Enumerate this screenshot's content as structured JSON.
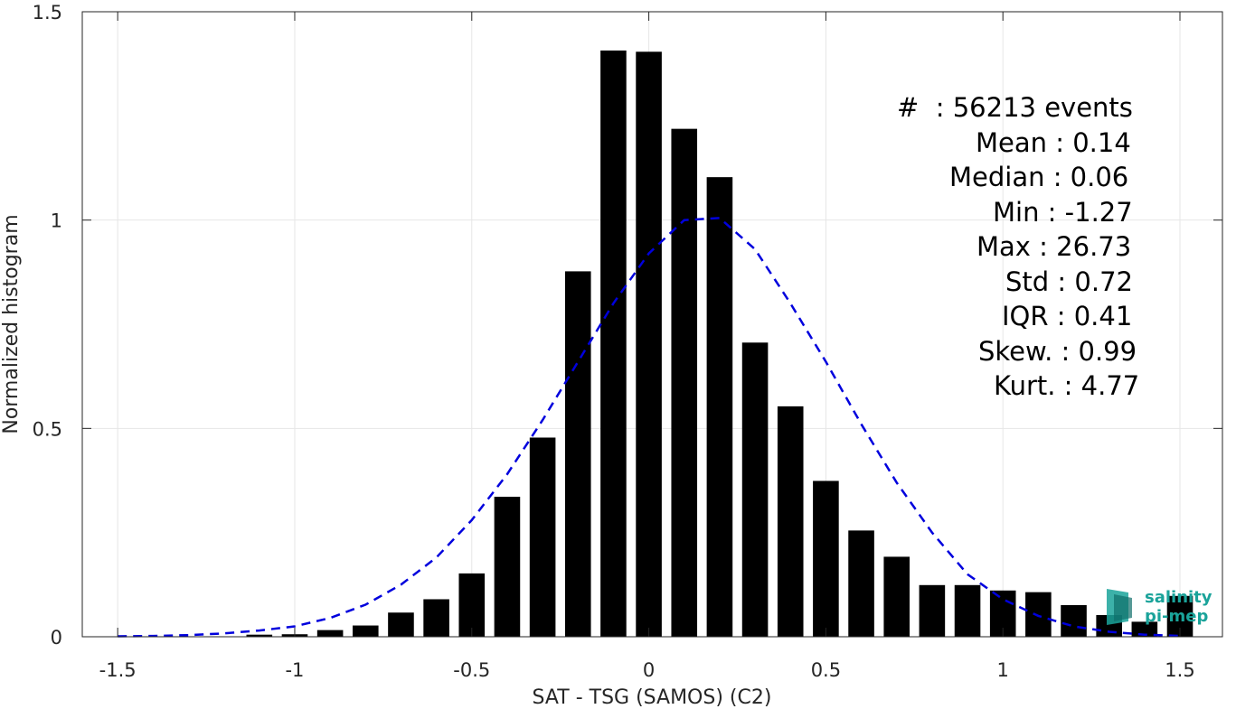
{
  "chart_data": {
    "type": "bar",
    "xlabel": "SAT - TSG (SAMOS) (C2)",
    "ylabel": "Normalized histogram",
    "xlim": [
      -1.6,
      1.62
    ],
    "ylim": [
      0,
      1.5
    ],
    "xticks": [
      -1.5,
      -1,
      -0.5,
      0,
      0.5,
      1,
      1.5
    ],
    "xtick_labels": [
      "-1.5",
      "-1",
      "-0.5",
      "0",
      "0.5",
      "1",
      "1.5"
    ],
    "yticks": [
      0,
      0.5,
      1,
      1.5
    ],
    "ytick_labels": [
      "0",
      "0.5",
      "1",
      "1.5"
    ],
    "grid": true,
    "bar_color": "#000000",
    "bins": [
      {
        "x": -1.1,
        "value": 0.005
      },
      {
        "x": -1.0,
        "value": 0.006
      },
      {
        "x": -0.9,
        "value": 0.016
      },
      {
        "x": -0.8,
        "value": 0.027
      },
      {
        "x": -0.7,
        "value": 0.058
      },
      {
        "x": -0.6,
        "value": 0.09
      },
      {
        "x": -0.5,
        "value": 0.152
      },
      {
        "x": -0.4,
        "value": 0.336
      },
      {
        "x": -0.3,
        "value": 0.478
      },
      {
        "x": -0.2,
        "value": 0.877
      },
      {
        "x": -0.1,
        "value": 1.407
      },
      {
        "x": 0.0,
        "value": 1.404
      },
      {
        "x": 0.1,
        "value": 1.219
      },
      {
        "x": 0.2,
        "value": 1.103
      },
      {
        "x": 0.3,
        "value": 0.706
      },
      {
        "x": 0.4,
        "value": 0.553
      },
      {
        "x": 0.5,
        "value": 0.374
      },
      {
        "x": 0.6,
        "value": 0.255
      },
      {
        "x": 0.7,
        "value": 0.192
      },
      {
        "x": 0.8,
        "value": 0.124
      },
      {
        "x": 0.9,
        "value": 0.124
      },
      {
        "x": 1.0,
        "value": 0.111
      },
      {
        "x": 1.1,
        "value": 0.107
      },
      {
        "x": 1.2,
        "value": 0.076
      },
      {
        "x": 1.3,
        "value": 0.052
      },
      {
        "x": 1.4,
        "value": 0.036
      },
      {
        "x": 1.5,
        "value": 0.098
      }
    ],
    "bar_width": 0.073,
    "fit_curve": {
      "type": "gaussian",
      "color": "#0000dd",
      "style": "dashed",
      "x": [
        -1.5,
        -1.4,
        -1.3,
        -1.2,
        -1.1,
        -1.0,
        -0.9,
        -0.8,
        -0.7,
        -0.6,
        -0.5,
        -0.4,
        -0.3,
        -0.2,
        -0.1,
        0.0,
        0.1,
        0.2,
        0.3,
        0.4,
        0.5,
        0.6,
        0.7,
        0.8,
        0.9,
        1.0,
        1.1,
        1.2,
        1.3,
        1.4,
        1.5
      ],
      "y": [
        0.001,
        0.002,
        0.004,
        0.008,
        0.015,
        0.025,
        0.045,
        0.077,
        0.125,
        0.19,
        0.28,
        0.39,
        0.52,
        0.66,
        0.8,
        0.92,
        1.0,
        1.005,
        0.93,
        0.8,
        0.66,
        0.51,
        0.37,
        0.25,
        0.15,
        0.09,
        0.05,
        0.025,
        0.012,
        0.005,
        0.002
      ]
    }
  },
  "stats": {
    "count": "#  : 56213 events",
    "mean": "Mean : 0.14",
    "median": "Median : 0.06",
    "min": "Min : -1.27",
    "max": "Max : 26.73",
    "std": "Std : 0.72",
    "iqr": "IQR : 0.41",
    "skew": "Skew. : 0.99",
    "kurt": "Kurt. : 4.77"
  },
  "logo": {
    "line1": "salinity",
    "line2": "pi-mep",
    "color": "#1aa39a"
  }
}
